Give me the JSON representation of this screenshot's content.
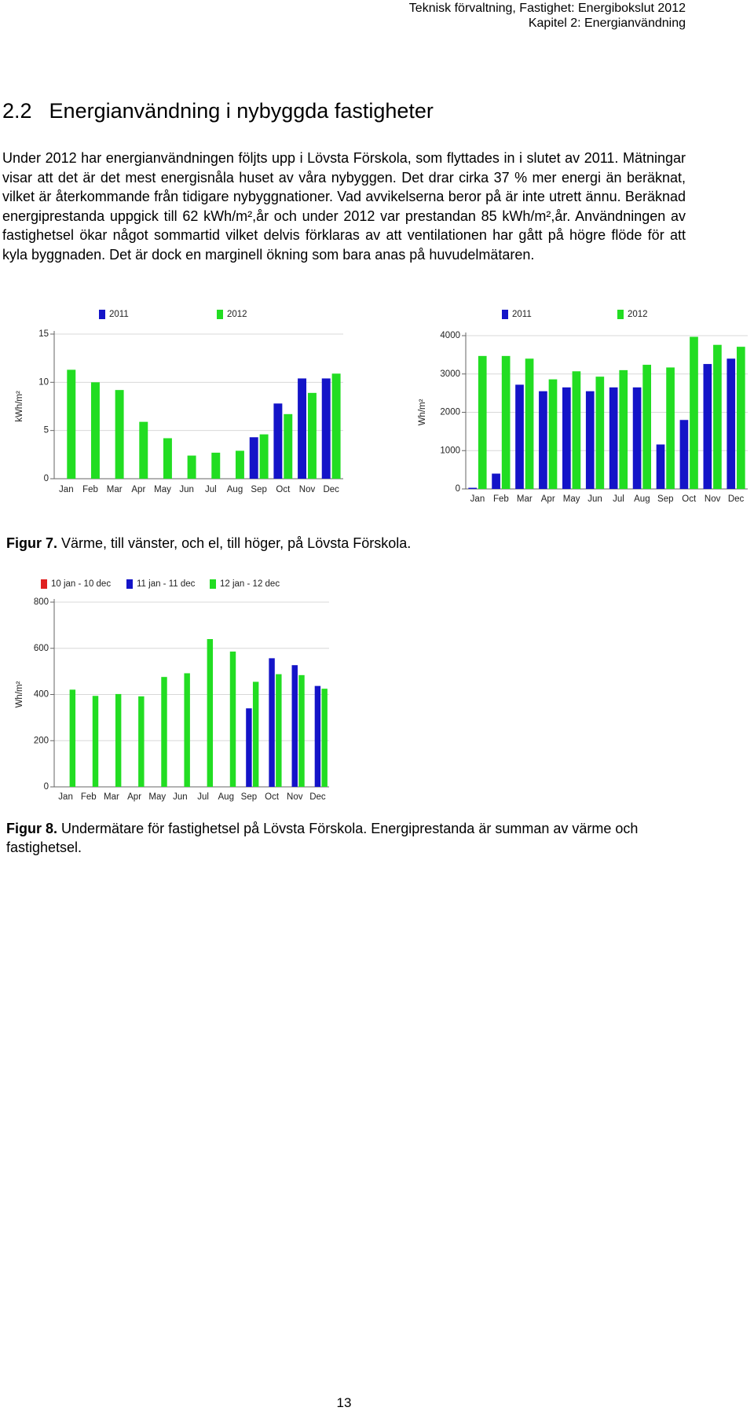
{
  "header": {
    "line1": "Teknisk förvaltning, Fastighet: Energibokslut 2012",
    "line2": "Kapitel 2: Energianvändning"
  },
  "section": {
    "number": "2.2",
    "title": "Energianvändning i nybyggda fastigheter"
  },
  "paragraph": "Under 2012 har energianvändningen följts upp i Lövsta Förskola, som flyttades in i slutet av 2011. Mätningar visar att det är det mest energisnåla huset av våra nybyggen. Det drar cirka 37 % mer energi än beräknat, vilket är återkommande från tidigare nybyggnationer. Vad avvikelserna beror på är inte utrett ännu. Beräknad energiprestanda uppgick till 62 kWh/m²,år och under 2012 var prestandan 85 kWh/m²,år. Användningen av fastighetsel ökar något sommartid vilket delvis förklaras av att ventilationen har gått på högre flöde för att kyla byggnaden. Det är dock en marginell ökning som bara anas på huvudelmätaren.",
  "figures": [
    {
      "label": "Figur 7.",
      "caption": "Värme, till vänster, och el, till höger, på Lövsta Förskola.",
      "charts": [
        {
          "type": "bar",
          "ylabel": "kWh/m²",
          "categories": [
            "Jan",
            "Feb",
            "Mar",
            "Apr",
            "May",
            "Jun",
            "Jul",
            "Aug",
            "Sep",
            "Oct",
            "Nov",
            "Dec"
          ],
          "series": [
            {
              "name": "2011",
              "color": "#1414c8",
              "values": [
                null,
                null,
                null,
                null,
                null,
                null,
                null,
                null,
                4.3,
                7.8,
                10.4,
                10.4
              ]
            },
            {
              "name": "2012",
              "color": "#22dd22",
              "values": [
                11.3,
                10.0,
                9.2,
                5.9,
                4.2,
                2.4,
                2.7,
                2.9,
                4.6,
                6.7,
                8.9,
                10.9
              ]
            }
          ],
          "ylim": [
            0,
            15
          ],
          "yticks": [
            0,
            5,
            10,
            15
          ],
          "grid": true
        },
        {
          "type": "bar",
          "ylabel": "Wh/m²",
          "categories": [
            "Jan",
            "Feb",
            "Mar",
            "Apr",
            "May",
            "Jun",
            "Jul",
            "Aug",
            "Sep",
            "Oct",
            "Nov",
            "Dec"
          ],
          "series": [
            {
              "name": "2011",
              "color": "#1414c8",
              "values": [
                30,
                400,
                2720,
                2550,
                2650,
                2550,
                2650,
                2650,
                1160,
                1800,
                3260,
                3400
              ]
            },
            {
              "name": "2012",
              "color": "#22dd22",
              "values": [
                3470,
                3470,
                3400,
                2860,
                3070,
                2930,
                3100,
                3240,
                3170,
                3970,
                3760,
                3710
              ]
            }
          ],
          "ylim": [
            0,
            4000
          ],
          "yticks": [
            0,
            1000,
            2000,
            3000,
            4000
          ],
          "grid": true
        }
      ]
    },
    {
      "label": "Figur 8.",
      "caption": "Undermätare för fastighetsel på Lövsta Förskola. Energiprestanda är summan av värme och fastighetsel.",
      "charts": [
        {
          "type": "bar",
          "ylabel": "Wh/m²",
          "categories": [
            "Jan",
            "Feb",
            "Mar",
            "Apr",
            "May",
            "Jun",
            "Jul",
            "Aug",
            "Sep",
            "Oct",
            "Nov",
            "Dec"
          ],
          "series": [
            {
              "name": "10 jan - 10 dec",
              "color": "#e02020",
              "values": [
                null,
                null,
                null,
                null,
                null,
                null,
                null,
                null,
                null,
                null,
                null,
                null
              ]
            },
            {
              "name": "11 jan - 11 dec",
              "color": "#1414c8",
              "values": [
                null,
                null,
                null,
                null,
                null,
                null,
                null,
                null,
                340,
                557,
                527,
                437
              ]
            },
            {
              "name": "12 jan - 12 dec",
              "color": "#22dd22",
              "values": [
                421,
                394,
                402,
                392,
                476,
                492,
                640,
                586,
                455,
                488,
                484,
                425
              ]
            }
          ],
          "ylim": [
            0,
            800
          ],
          "yticks": [
            0,
            200,
            400,
            600,
            800
          ],
          "grid": true
        }
      ]
    }
  ],
  "page_number": "13"
}
